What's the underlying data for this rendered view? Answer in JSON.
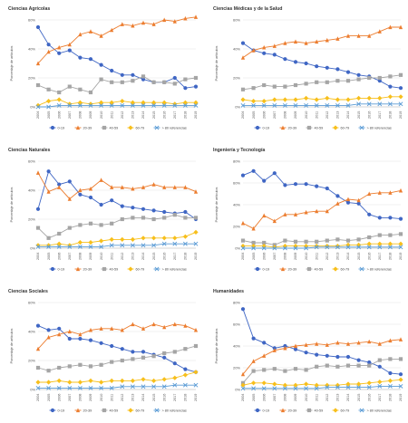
{
  "colors": {
    "s0_19": "#3f66c4",
    "s20_39": "#ec7d2f",
    "s40_59": "#a5a5a5",
    "s60_79": "#f7bf1b",
    "s80plus": "#5a9bd5",
    "grid": "#e2e2e2",
    "text": "#333333"
  },
  "series_names": [
    "0-19",
    "20-39",
    "40-59",
    "60-79",
    "> 80 referencias"
  ],
  "chart_data": [
    {
      "type": "line",
      "title": "Ciencias Agrícolas",
      "ylabel": "Porcentaje de artículos",
      "ylim": [
        0,
        60
      ],
      "yticks": [
        "0%",
        "20%",
        "40%",
        "60%"
      ],
      "categories": [
        "2004",
        "2005",
        "2006",
        "2007",
        "2008",
        "2009",
        "2010",
        "2011",
        "2012",
        "2013",
        "2014",
        "2015",
        "2016",
        "2017",
        "2018",
        "2019"
      ],
      "series": [
        {
          "name": "0-19",
          "values": [
            55,
            43,
            37,
            39,
            34,
            33,
            29,
            25,
            22,
            22,
            19,
            17,
            17,
            20,
            13,
            14
          ]
        },
        {
          "name": "20-39",
          "values": [
            30,
            38,
            41,
            43,
            50,
            52,
            49,
            53,
            57,
            56,
            58,
            57,
            60,
            59,
            61,
            62
          ]
        },
        {
          "name": "40-59",
          "values": [
            15,
            12,
            10,
            14,
            12,
            10,
            19,
            17,
            17,
            18,
            21,
            17,
            17,
            16,
            19,
            20
          ]
        },
        {
          "name": "60-79",
          "values": [
            1,
            4,
            5,
            2,
            3,
            2,
            3,
            3,
            4,
            3,
            3,
            3,
            3,
            2,
            3,
            3
          ]
        },
        {
          "name": "> 80 referencias",
          "values": [
            0,
            0,
            1,
            1,
            1,
            1,
            1,
            1,
            1,
            1,
            1,
            1,
            1,
            1,
            1,
            1
          ]
        }
      ]
    },
    {
      "type": "line",
      "title": "Ciencias Médicas y de la Salud",
      "ylabel": "Porcentaje de artículos",
      "ylim": [
        0,
        60
      ],
      "yticks": [
        "0%",
        "20%",
        "40%",
        "60%"
      ],
      "categories": [
        "2004",
        "2005",
        "2006",
        "2007",
        "2008",
        "2009",
        "2010",
        "2011",
        "2012",
        "2013",
        "2014",
        "2015",
        "2016",
        "2017",
        "2018",
        "2019"
      ],
      "series": [
        {
          "name": "0-19",
          "values": [
            44,
            39,
            37,
            36,
            33,
            31,
            30,
            28,
            27,
            26,
            24,
            22,
            21,
            18,
            14,
            13
          ]
        },
        {
          "name": "20-39",
          "values": [
            34,
            39,
            41,
            42,
            44,
            45,
            44,
            45,
            46,
            47,
            49,
            49,
            49,
            52,
            55,
            55
          ]
        },
        {
          "name": "40-59",
          "values": [
            12,
            13,
            15,
            14,
            14,
            15,
            16,
            17,
            17,
            18,
            18,
            19,
            20,
            20,
            21,
            22
          ]
        },
        {
          "name": "60-79",
          "values": [
            5,
            4,
            4,
            5,
            5,
            5,
            6,
            5,
            6,
            5,
            5,
            6,
            6,
            6,
            7,
            7
          ]
        },
        {
          "name": "> 80 referencias",
          "values": [
            1,
            1,
            1,
            1,
            1,
            1,
            1,
            1,
            1,
            1,
            1,
            2,
            2,
            2,
            2,
            2
          ]
        }
      ]
    },
    {
      "type": "line",
      "title": "Ciencias Naturales",
      "ylabel": "Porcentaje de artículos",
      "ylim": [
        0,
        60
      ],
      "yticks": [
        "0%",
        "20%",
        "40%",
        "60%"
      ],
      "categories": [
        "2004",
        "2005",
        "2006",
        "2007",
        "2008",
        "2009",
        "2010",
        "2011",
        "2012",
        "2013",
        "2014",
        "2015",
        "2016",
        "2017",
        "2018",
        "2019"
      ],
      "series": [
        {
          "name": "0-19",
          "values": [
            27,
            53,
            44,
            46,
            37,
            35,
            30,
            33,
            29,
            28,
            27,
            26,
            25,
            24,
            25,
            20
          ]
        },
        {
          "name": "20-39",
          "values": [
            52,
            39,
            42,
            34,
            40,
            41,
            47,
            42,
            42,
            41,
            42,
            44,
            42,
            42,
            42,
            39
          ]
        },
        {
          "name": "40-59",
          "values": [
            14,
            7,
            10,
            14,
            16,
            17,
            16,
            17,
            20,
            21,
            21,
            20,
            21,
            23,
            21,
            21
          ]
        },
        {
          "name": "60-79",
          "values": [
            2,
            2,
            3,
            2,
            4,
            4,
            5,
            6,
            6,
            6,
            7,
            7,
            7,
            7,
            8,
            11
          ]
        },
        {
          "name": "> 80 referencias",
          "values": [
            1,
            1,
            1,
            1,
            1,
            1,
            1,
            2,
            2,
            2,
            2,
            2,
            3,
            3,
            3,
            3
          ]
        }
      ]
    },
    {
      "type": "line",
      "title": "Ingeniería y Tecnología",
      "ylabel": "Porcentaje de artículos",
      "ylim": [
        0,
        80
      ],
      "yticks": [
        "0%",
        "20%",
        "40%",
        "60%",
        "80%"
      ],
      "categories": [
        "2004",
        "2005",
        "2006",
        "2007",
        "2008",
        "2009",
        "2010",
        "2011",
        "2012",
        "2013",
        "2014",
        "2015",
        "2016",
        "2017",
        "2018",
        "2019"
      ],
      "series": [
        {
          "name": "0-19",
          "values": [
            67,
            71,
            62,
            69,
            58,
            59,
            59,
            57,
            55,
            48,
            42,
            41,
            31,
            28,
            28,
            27
          ]
        },
        {
          "name": "20-39",
          "values": [
            23,
            18,
            30,
            25,
            31,
            31,
            33,
            34,
            34,
            41,
            45,
            44,
            50,
            51,
            51,
            53
          ]
        },
        {
          "name": "40-59",
          "values": [
            7,
            5,
            5,
            3,
            7,
            6,
            6,
            6,
            7,
            8,
            7,
            8,
            10,
            12,
            12,
            13
          ]
        },
        {
          "name": "60-79",
          "values": [
            2,
            2,
            2,
            1,
            2,
            2,
            2,
            2,
            2,
            2,
            3,
            3,
            4,
            4,
            4,
            4
          ]
        },
        {
          "name": "> 80 referencias",
          "values": [
            0,
            0,
            0,
            0,
            0,
            0,
            0,
            1,
            1,
            1,
            1,
            1,
            1,
            1,
            1,
            1
          ]
        }
      ]
    },
    {
      "type": "line",
      "title": "Ciencias Sociales",
      "ylabel": "Porcentaje de artículos",
      "ylim": [
        0,
        60
      ],
      "yticks": [
        "0%",
        "20%",
        "40%",
        "60%"
      ],
      "categories": [
        "2004",
        "2005",
        "2006",
        "2007",
        "2008",
        "2009",
        "2010",
        "2011",
        "2012",
        "2013",
        "2014",
        "2015",
        "2016",
        "2017",
        "2018",
        "2019"
      ],
      "series": [
        {
          "name": "0-19",
          "values": [
            44,
            41,
            42,
            35,
            35,
            34,
            32,
            30,
            28,
            26,
            26,
            24,
            22,
            18,
            14,
            12
          ]
        },
        {
          "name": "20-39",
          "values": [
            28,
            36,
            38,
            40,
            38,
            41,
            42,
            42,
            41,
            45,
            42,
            45,
            43,
            45,
            44,
            41
          ]
        },
        {
          "name": "40-59",
          "values": [
            15,
            13,
            15,
            16,
            17,
            16,
            17,
            19,
            20,
            21,
            22,
            23,
            25,
            26,
            28,
            30
          ]
        },
        {
          "name": "60-79",
          "values": [
            5,
            5,
            6,
            5,
            5,
            6,
            5,
            6,
            6,
            6,
            7,
            6,
            7,
            8,
            10,
            12
          ]
        },
        {
          "name": "> 80 referencias",
          "values": [
            1,
            1,
            1,
            1,
            1,
            1,
            1,
            1,
            2,
            2,
            2,
            2,
            2,
            3,
            3,
            3
          ]
        }
      ]
    },
    {
      "type": "line",
      "title": "Humanidades",
      "ylabel": "Porcentaje de artículos",
      "ylim": [
        0,
        80
      ],
      "yticks": [
        "0%",
        "20%",
        "40%",
        "60%",
        "80%"
      ],
      "categories": [
        "2004",
        "2005",
        "2006",
        "2007",
        "2008",
        "2009",
        "2010",
        "2011",
        "2012",
        "2013",
        "2014",
        "2015",
        "2016",
        "2017",
        "2018",
        "2019"
      ],
      "series": [
        {
          "name": "0-19",
          "values": [
            74,
            47,
            43,
            38,
            40,
            37,
            34,
            32,
            31,
            30,
            30,
            27,
            25,
            21,
            15,
            14
          ]
        },
        {
          "name": "20-39",
          "values": [
            14,
            26,
            31,
            36,
            38,
            40,
            41,
            42,
            41,
            43,
            42,
            43,
            44,
            42,
            45,
            46
          ]
        },
        {
          "name": "40-59",
          "values": [
            6,
            17,
            18,
            19,
            17,
            19,
            18,
            21,
            22,
            21,
            22,
            22,
            22,
            27,
            28,
            28
          ]
        },
        {
          "name": "60-79",
          "values": [
            4,
            6,
            6,
            5,
            4,
            4,
            5,
            4,
            4,
            4,
            5,
            5,
            6,
            7,
            8,
            9
          ]
        },
        {
          "name": "> 80 referencias",
          "values": [
            1,
            1,
            1,
            1,
            1,
            1,
            1,
            1,
            2,
            2,
            2,
            2,
            2,
            3,
            3,
            3
          ]
        }
      ]
    }
  ]
}
